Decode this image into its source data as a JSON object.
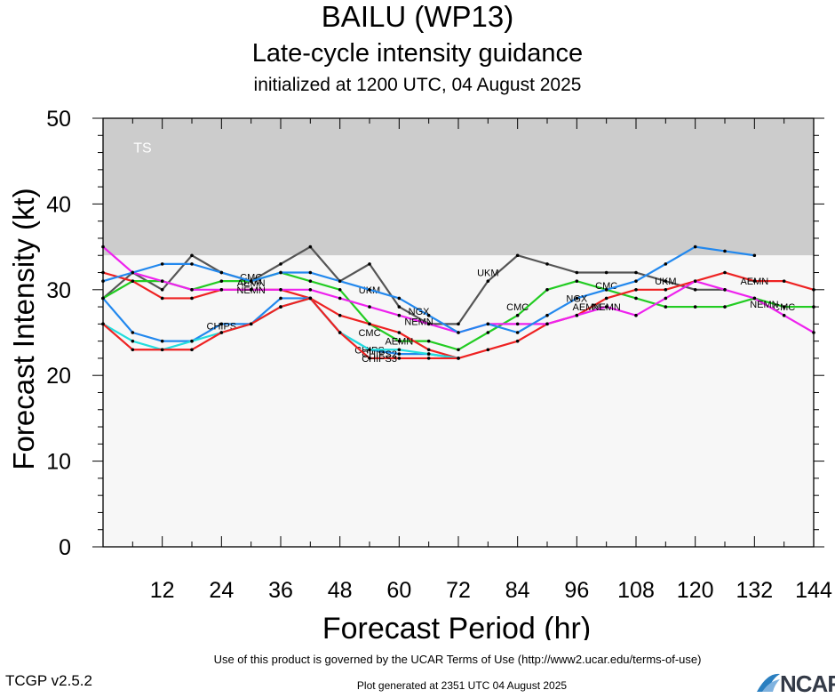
{
  "header": {
    "title": "BAILU (WP13)",
    "subtitle": "Late-cycle intensity guidance",
    "init": "initialized at 1200 UTC, 04 August 2025"
  },
  "footer": {
    "terms": "Use of this product is governed by the UCAR Terms of Use (http://www2.ucar.edu/terms-of-use)",
    "version": "TCGP v2.5.2",
    "generated": "Plot generated at 2351 UTC   04 August 2025",
    "logo": "NCAR"
  },
  "chart_data": {
    "type": "line",
    "xlabel": "Forecast Period (hr)",
    "ylabel": "Forecast Intensity (kt)",
    "xlim": [
      0,
      144
    ],
    "ylim": [
      0,
      50
    ],
    "xticks": [
      12,
      24,
      36,
      48,
      60,
      72,
      84,
      96,
      108,
      120,
      132,
      144
    ],
    "yticks": [
      0,
      10,
      20,
      30,
      40,
      50
    ],
    "bands": [
      {
        "label": "TS",
        "from": 34,
        "to": 50,
        "color": "#cccccc"
      },
      {
        "label": "",
        "from": 0,
        "to": 34,
        "color": "#f7f7f7"
      }
    ],
    "series": [
      {
        "name": "UKM",
        "color": "#555555",
        "x": [
          0,
          6,
          12,
          18,
          24,
          30,
          36,
          42,
          48,
          54,
          60,
          66,
          72,
          78,
          84,
          90,
          96,
          102,
          108,
          114,
          120,
          126
        ],
        "y": [
          29,
          32,
          30,
          34,
          32,
          31,
          33,
          35,
          31,
          33,
          28,
          26,
          26,
          31,
          34,
          33,
          32,
          32,
          32,
          31,
          30,
          30
        ],
        "labels": [
          [
            30,
            31
          ],
          [
            54,
            30
          ],
          [
            78,
            32
          ],
          [
            114,
            31
          ]
        ]
      },
      {
        "name": "CMC",
        "color": "#22cc22",
        "x": [
          0,
          6,
          12,
          18,
          24,
          30,
          36,
          42,
          48,
          54,
          60,
          66,
          72,
          78,
          84,
          90,
          96,
          102,
          108,
          114,
          120,
          126,
          132,
          138,
          144
        ],
        "y": [
          29,
          31,
          31,
          30,
          31,
          31,
          32,
          31,
          30,
          26,
          24,
          24,
          23,
          25,
          27,
          30,
          31,
          30,
          29,
          28,
          28,
          28,
          29,
          28,
          28
        ],
        "labels": [
          [
            30,
            31.5
          ],
          [
            54,
            25
          ],
          [
            84,
            28
          ],
          [
            102,
            30.5
          ],
          [
            138,
            28
          ]
        ]
      },
      {
        "name": "AEMN",
        "color": "#ee2222",
        "x": [
          0,
          6,
          12,
          18,
          24,
          30,
          36,
          42,
          48,
          54,
          60,
          66,
          72,
          78,
          84,
          90,
          96,
          102,
          108,
          114,
          120,
          126,
          132,
          138,
          144
        ],
        "y": [
          32,
          31,
          29,
          29,
          30,
          30,
          30,
          29,
          27,
          26,
          25,
          23,
          22,
          23,
          24,
          26,
          27,
          29,
          30,
          30,
          31,
          32,
          31,
          31,
          30
        ],
        "labels": [
          [
            30,
            30.8
          ],
          [
            60,
            24
          ],
          [
            98,
            28
          ],
          [
            132,
            31
          ]
        ]
      },
      {
        "name": "NEMN",
        "color": "#ee22ee",
        "x": [
          0,
          6,
          12,
          18,
          24,
          30,
          36,
          42,
          48,
          54,
          60,
          66,
          72,
          78,
          84,
          90,
          96,
          102,
          108,
          114,
          120,
          126,
          132,
          138,
          144
        ],
        "y": [
          35,
          32,
          31,
          30,
          30,
          30,
          30,
          30,
          29,
          28,
          27,
          26,
          25,
          26,
          26,
          26,
          27,
          28,
          27,
          29,
          31,
          30,
          29,
          27,
          25
        ],
        "labels": [
          [
            30,
            30
          ],
          [
            64,
            26.3
          ],
          [
            102,
            28
          ],
          [
            134,
            28.3
          ]
        ]
      },
      {
        "name": "NGX",
        "color": "#2288ee",
        "x": [
          0,
          6,
          12,
          18,
          24,
          30,
          36,
          42,
          48,
          54,
          60,
          66,
          72,
          78,
          84,
          90,
          96,
          102,
          108,
          114,
          120,
          126,
          132
        ],
        "y": [
          31,
          32,
          33,
          33,
          32,
          31,
          32,
          32,
          31,
          30,
          29,
          27,
          25,
          26,
          25,
          27,
          29,
          30,
          31,
          33,
          35,
          34.5,
          34
        ],
        "labels": [
          [
            64,
            27.5
          ],
          [
            96,
            29
          ]
        ]
      },
      {
        "name": "CHIPS",
        "color": "#2288ee",
        "x": [
          0,
          6,
          12,
          18,
          24,
          30,
          36,
          42,
          48,
          54,
          60,
          66,
          72
        ],
        "y": [
          29,
          25,
          24,
          24,
          26,
          26,
          29,
          29,
          25,
          23,
          22.5,
          22.5,
          22
        ],
        "labels": [
          [
            24,
            25.8
          ],
          [
            54,
            23
          ]
        ]
      },
      {
        "name": "CHIPS2",
        "color": "#22dddd",
        "x": [
          0,
          6,
          12,
          18,
          24,
          30,
          36,
          42,
          48,
          54,
          60,
          66,
          72
        ],
        "y": [
          26,
          24,
          23,
          24,
          25,
          26,
          28,
          29,
          25,
          23,
          23,
          22.5,
          22
        ],
        "labels": [
          [
            56,
            22.5
          ]
        ]
      },
      {
        "name": "CHIPS3",
        "color": "#ee2222",
        "x": [
          0,
          6,
          12,
          18,
          24,
          30,
          36,
          42,
          48,
          54,
          60,
          66,
          72
        ],
        "y": [
          26,
          23,
          23,
          23,
          25,
          26,
          28,
          29,
          25,
          22,
          22,
          22,
          22
        ],
        "labels": [
          [
            56,
            22
          ]
        ]
      }
    ]
  }
}
